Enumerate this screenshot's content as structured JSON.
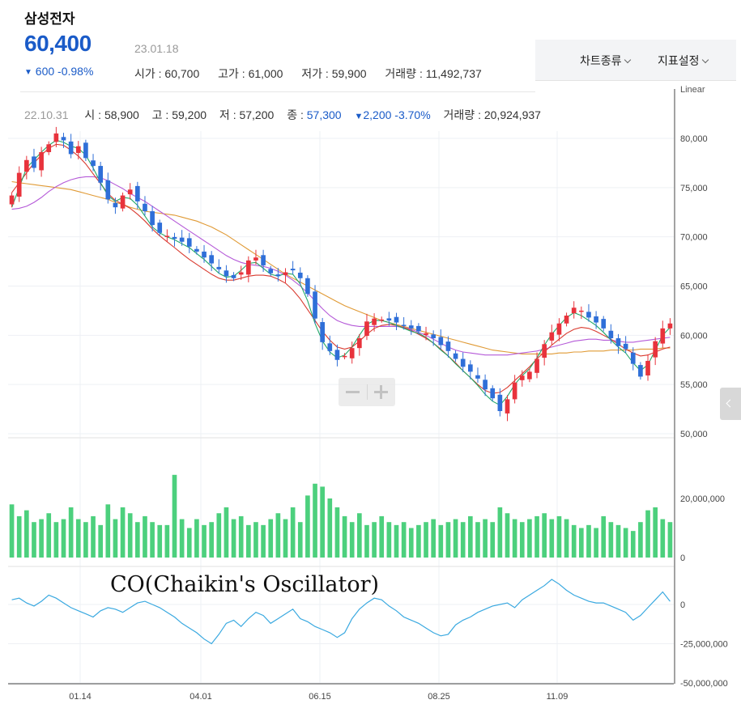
{
  "stock": {
    "name": "삼성전자",
    "price": "60,400",
    "change": "600 -0.98%",
    "date": "23.01.18",
    "open": "시가 : 60,700",
    "high": "고가 : 61,000",
    "low": "저가 : 59,900",
    "volume": "거래량 : 11,492,737"
  },
  "toolbar": {
    "chart_type_label": "차트종류",
    "indicator_label": "지표설정"
  },
  "hover": {
    "date": "22.10.31",
    "open": "시 : 58,900",
    "high": "고 : 59,200",
    "low": "저 : 57,200",
    "close_label": "종 : ",
    "close_value": "57,300",
    "change": "2,200 -3.70%",
    "volume": "거래량 : 20,924,937"
  },
  "colors": {
    "up": "#e8333c",
    "down": "#2f6fd8",
    "volume": "#4cd07d",
    "oscillator": "#3aa9e0",
    "ma_short": "#22a868",
    "ma_mid": "#d93a2f",
    "ma_long": "#b55ad8",
    "ma_longest": "#e09a35",
    "brand_blue": "#1a5bc8"
  },
  "chart_data": {
    "type": "candlestick",
    "scale_label": "Linear",
    "price_ticks": [
      "80,000",
      "75,000",
      "70,000",
      "65,000",
      "60,000",
      "55,000",
      "50,000"
    ],
    "price_tick_values": [
      80000,
      75000,
      70000,
      65000,
      60000,
      55000,
      50000
    ],
    "volume_ticks": [
      "20,000,000",
      "0"
    ],
    "volume_tick_values": [
      20000000,
      0
    ],
    "osc_ticks": [
      "0",
      "-25,000,000",
      "-50,000,000"
    ],
    "osc_tick_values": [
      0,
      -25000000,
      -50000000
    ],
    "x_ticks": [
      "01.14",
      "04.01",
      "06.15",
      "08.25",
      "11.09"
    ],
    "oscillator_title": "CO(Chaikin's Oscillator)",
    "ylim": [
      50000,
      84000
    ],
    "close_series": [
      74200,
      76500,
      77800,
      77000,
      78600,
      79400,
      80500,
      79800,
      78400,
      79200,
      78000,
      77200,
      75500,
      73800,
      73000,
      74200,
      74800,
      73600,
      72600,
      71200,
      70400,
      70100,
      69800,
      69500,
      69000,
      68500,
      67900,
      67300,
      66700,
      66000,
      65800,
      66400,
      67600,
      67900,
      67100,
      66300,
      66000,
      66400,
      66600,
      65800,
      64200,
      61700,
      59300,
      58400,
      57500,
      57900,
      58700,
      59700,
      61400,
      61700,
      61600,
      61500,
      61300,
      61000,
      60700,
      60400,
      60200,
      59700,
      59000,
      58400,
      57600,
      56800,
      56300,
      55600,
      54500,
      53600,
      52300,
      53500,
      55200,
      55900,
      56300,
      57600,
      59100,
      60300,
      61200,
      62000,
      62800,
      62500,
      61800,
      61300,
      60700,
      59700,
      58900,
      58600,
      57100,
      55800,
      57400,
      59400,
      60700,
      61200
    ],
    "volume_series": [
      18,
      14,
      16,
      12,
      13,
      15,
      12,
      13,
      17,
      13,
      12,
      14,
      11,
      18,
      13,
      17,
      15,
      12,
      14,
      12,
      11,
      11,
      28,
      13,
      10,
      13,
      11,
      12,
      15,
      17,
      13,
      14,
      11,
      12,
      11,
      13,
      15,
      13,
      17,
      12,
      21,
      25,
      24,
      20,
      17,
      14,
      12,
      15,
      11,
      12,
      14,
      12,
      11,
      12,
      10,
      11,
      12,
      13,
      11,
      12,
      13,
      12,
      14,
      12,
      13,
      12,
      17,
      15,
      13,
      12,
      13,
      14,
      15,
      13,
      14,
      13,
      11,
      10,
      11,
      10,
      14,
      12,
      11,
      10,
      9,
      12,
      16,
      17,
      13,
      12
    ],
    "oscillator_series": [
      3,
      4,
      1,
      -1,
      2,
      6,
      4,
      1,
      -2,
      -4,
      -6,
      -8,
      -4,
      -2,
      -3,
      -5,
      -2,
      1,
      2,
      0,
      -2,
      -5,
      -8,
      -12,
      -15,
      -18,
      -22,
      -25,
      -19,
      -12,
      -10,
      -14,
      -9,
      -5,
      -7,
      -12,
      -9,
      -6,
      -3,
      -9,
      -11,
      -14,
      -16,
      -18,
      -21,
      -18,
      -9,
      -3,
      1,
      4,
      3,
      -1,
      -4,
      -8,
      -10,
      -12,
      -15,
      -18,
      -20,
      -19,
      -13,
      -10,
      -8,
      -5,
      -3,
      -1,
      0,
      1,
      -2,
      3,
      6,
      9,
      12,
      16,
      13,
      9,
      6,
      4,
      2,
      1,
      1,
      -1,
      -3,
      -5,
      -10,
      -7,
      -2,
      3,
      8,
      2
    ],
    "ma_short_series": [
      73000,
      75000,
      77000,
      77800,
      78600,
      79300,
      79800,
      79600,
      79200,
      79000,
      78300,
      77000,
      75500,
      74200,
      73600,
      74000,
      73900,
      73200,
      72100,
      71000,
      70400,
      70000,
      69700,
      69300,
      68900,
      68300,
      67700,
      67000,
      66300,
      65900,
      66000,
      66600,
      67300,
      67400,
      66800,
      66200,
      66000,
      66300,
      66200,
      65200,
      63500,
      61200,
      59400,
      58300,
      57700,
      58000,
      58800,
      60000,
      61100,
      61500,
      61500,
      61300,
      61000,
      60700,
      60400,
      60200,
      59800,
      59200,
      58500,
      57900,
      57100,
      56400,
      55700,
      54900,
      54000,
      53300,
      52900,
      53800,
      55000,
      55900,
      56600,
      57700,
      59000,
      60100,
      61000,
      61800,
      62300,
      62000,
      61500,
      61000,
      60300,
      59500,
      58800,
      58200,
      57200,
      56400,
      57000,
      58500,
      60000,
      60800
    ],
    "ma_mid_series": [
      74500,
      75500,
      76500,
      77500,
      78300,
      79000,
      79400,
      79300,
      78800,
      78200,
      77400,
      76400,
      75400,
      74400,
      73700,
      73300,
      72900,
      72300,
      71600,
      70800,
      70100,
      69500,
      68900,
      68300,
      67700,
      67200,
      66700,
      66200,
      65800,
      65600,
      65600,
      65800,
      66000,
      66100,
      66100,
      66000,
      65700,
      65300,
      64600,
      63700,
      62600,
      61500,
      60400,
      59500,
      58800,
      58600,
      58800,
      59400,
      60100,
      60700,
      61000,
      61100,
      61000,
      60800,
      60500,
      60100,
      59700,
      59200,
      58600,
      57900,
      57200,
      56400,
      55700,
      55000,
      54400,
      54100,
      54200,
      54700,
      55400,
      56100,
      56800,
      57600,
      58300,
      59000,
      59600,
      60200,
      60600,
      60800,
      60700,
      60400,
      60000,
      59600,
      59100,
      58600,
      58200,
      57900,
      58000,
      58300,
      58600,
      58800
    ],
    "ma_long_series": [
      72800,
      72900,
      73100,
      73500,
      74000,
      74600,
      75100,
      75500,
      75800,
      76000,
      76100,
      76100,
      76000,
      75700,
      75300,
      74900,
      74400,
      74000,
      73600,
      73100,
      72600,
      72100,
      71600,
      71100,
      70600,
      70100,
      69600,
      69100,
      68600,
      68100,
      67700,
      67400,
      67200,
      67100,
      67000,
      66800,
      66500,
      66100,
      65600,
      65000,
      64300,
      63500,
      62700,
      62000,
      61500,
      61200,
      61000,
      60900,
      60900,
      60900,
      60900,
      60900,
      60900,
      60800,
      60600,
      60300,
      60000,
      59600,
      59200,
      58800,
      58500,
      58300,
      58200,
      58100,
      58000,
      58000,
      58000,
      58000,
      58100,
      58200,
      58300,
      58400,
      58600,
      58800,
      59000,
      59200,
      59400,
      59500,
      59600,
      59600,
      59500,
      59500,
      59400,
      59300,
      59300,
      59400,
      59500,
      59600,
      59700,
      59800
    ],
    "ma_longest_series": [
      75600,
      75500,
      75400,
      75300,
      75200,
      75100,
      75000,
      74900,
      74800,
      74600,
      74400,
      74200,
      74000,
      73800,
      73500,
      73300,
      73000,
      72800,
      72600,
      72500,
      72400,
      72300,
      72200,
      72000,
      71800,
      71600,
      71300,
      71000,
      70600,
      70200,
      69700,
      69200,
      68700,
      68200,
      67700,
      67200,
      66700,
      66200,
      65800,
      65400,
      65000,
      64600,
      64200,
      63800,
      63400,
      63000,
      62700,
      62400,
      62100,
      61800,
      61500,
      61300,
      61100,
      60900,
      60700,
      60500,
      60300,
      60100,
      59900,
      59700,
      59500,
      59300,
      59100,
      58900,
      58700,
      58500,
      58400,
      58300,
      58200,
      58100,
      58100,
      58100,
      58100,
      58100,
      58200,
      58200,
      58300,
      58300,
      58400,
      58400,
      58400,
      58500,
      58500,
      58500,
      58500,
      58600,
      58600,
      58600,
      58700,
      58700
    ]
  }
}
